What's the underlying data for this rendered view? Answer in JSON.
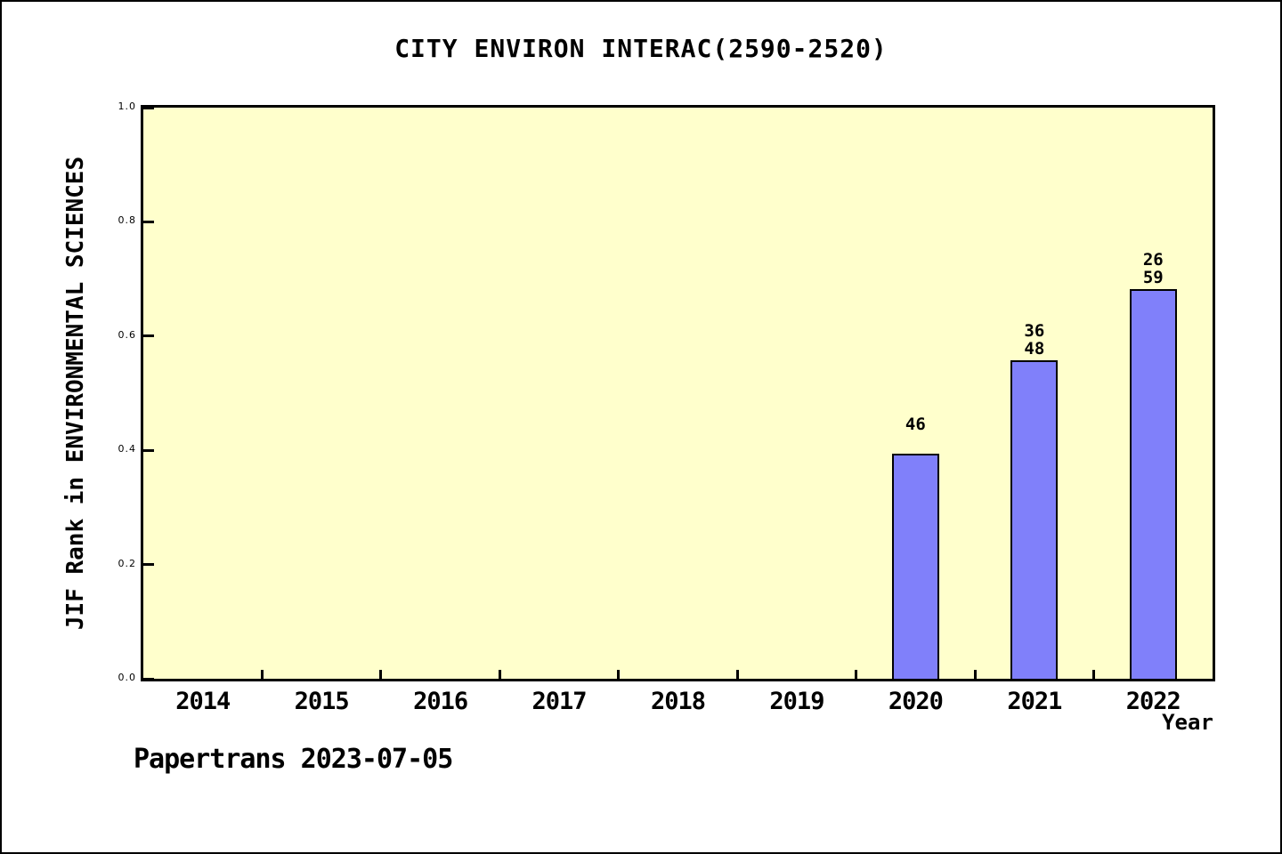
{
  "footer": {
    "text": "Papertrans 2023-07-05"
  },
  "colors": {
    "page_bg": "#ffffff",
    "plot_bg": "#ffffcc",
    "bar_fill": "#8080fa",
    "bar_edge": "#000000",
    "frame": "#000000",
    "text": "#000000"
  },
  "chart_data": {
    "type": "bar",
    "title": "CITY ENVIRON INTERAC(2590-2520)",
    "xlabel": "Year",
    "ylabel": "JIF Rank in ENVIRONMENTAL SCIENCES",
    "categories": [
      "2014",
      "2015",
      "2016",
      "2017",
      "2018",
      "2019",
      "2020",
      "2021",
      "2022"
    ],
    "values": [
      null,
      null,
      null,
      null,
      null,
      null,
      0.394,
      0.557,
      0.683
    ],
    "bar_labels": [
      [],
      [],
      [],
      [],
      [],
      [],
      [
        "46"
      ],
      [
        "36",
        "48"
      ],
      [
        "26",
        "59"
      ]
    ],
    "ylim": [
      0,
      1
    ],
    "yticks": [
      "0.0",
      "0.2",
      "0.4",
      "0.6",
      "0.8",
      "1.0"
    ],
    "grid": false,
    "legend": null
  }
}
